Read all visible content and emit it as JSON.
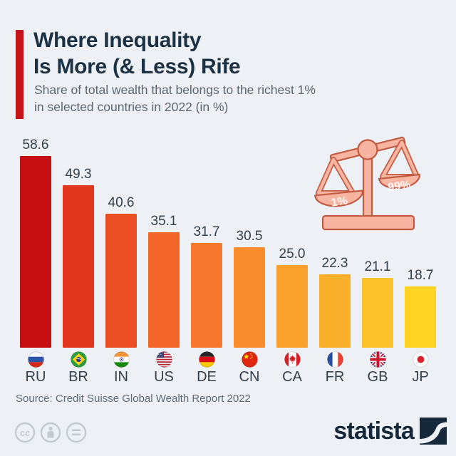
{
  "header": {
    "title_line1": "Where Inequality",
    "title_line2": "Is More (& Less) Rife",
    "subtitle_line1": "Share of total wealth that belongs to the richest 1%",
    "subtitle_line2": "in selected countries in 2022 (in %)",
    "accent_color": "#c7141b"
  },
  "chart_data": {
    "type": "bar",
    "title": "Where Inequality Is More (& Less) Rife",
    "subtitle": "Share of total wealth that belongs to the richest 1% in selected countries in 2022 (in %)",
    "categories": [
      "RU",
      "BR",
      "IN",
      "US",
      "DE",
      "CN",
      "CA",
      "FR",
      "GB",
      "JP"
    ],
    "values": [
      58.6,
      49.3,
      40.6,
      35.1,
      31.7,
      30.5,
      25.0,
      22.3,
      21.1,
      18.7
    ],
    "value_labels": [
      "58.6",
      "49.3",
      "40.6",
      "35.1",
      "31.7",
      "30.5",
      "25.0",
      "22.3",
      "21.1",
      "18.7"
    ],
    "bar_colors": [
      "#c40e12",
      "#e0361b",
      "#eb4e22",
      "#f2662a",
      "#f6782e",
      "#f98d2d",
      "#faa02c",
      "#fbb02c",
      "#fcc22b",
      "#fdd324"
    ],
    "ylim": [
      0,
      60
    ],
    "grid": false,
    "legend": null
  },
  "scale_illustration": {
    "left_pan_label": "1%",
    "right_pan_label": "99%",
    "fill_color": "#f7b5a1",
    "outline_color": "#c25a41"
  },
  "footer": {
    "source": "Source: Credit Suisse Global Wealth Report 2022",
    "license_icons": [
      "cc-icon",
      "attribution-icon",
      "equal-icon"
    ],
    "logo_text": "statista"
  }
}
